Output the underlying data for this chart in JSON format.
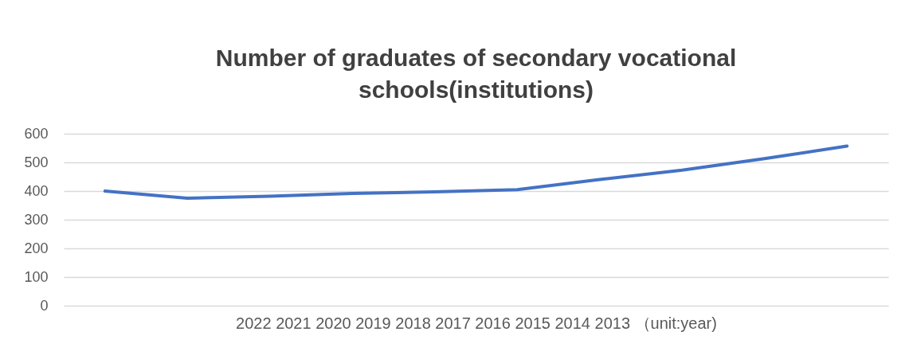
{
  "chart_data": {
    "type": "line",
    "title": "Number of graduates of secondary vocational schools(institutions)",
    "xlabel": "2022  2021  2020  2019  2018  2017  2016  2015  2014  2013   （unit:year)",
    "categories": [
      null,
      null,
      null,
      null,
      null,
      null,
      null,
      null,
      null,
      null
    ],
    "series": [
      {
        "color": "#4472c4",
        "values": [
          400,
          375,
          382,
          392,
          397,
          405,
          440,
          473,
          513,
          557
        ]
      }
    ],
    "ylim": [
      0,
      600
    ],
    "yticks": [
      0,
      100,
      200,
      300,
      400,
      500,
      600
    ],
    "grid": "y",
    "legend": false,
    "marker": "none",
    "line_style": "solid",
    "tick_labels": "y"
  }
}
